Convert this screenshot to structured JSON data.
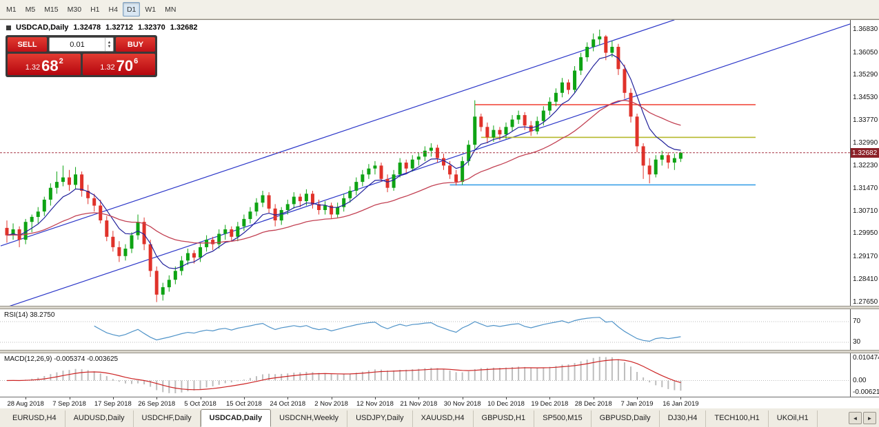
{
  "toolbar": {
    "timeframes": [
      "M1",
      "M5",
      "M15",
      "M30",
      "H1",
      "H4",
      "D1",
      "W1",
      "MN"
    ],
    "active_timeframe": "D1"
  },
  "chart_header": {
    "symbol": "USDCAD,Daily",
    "open": "1.32478",
    "high": "1.32712",
    "low": "1.32370",
    "close": "1.32682"
  },
  "trade_panel": {
    "sell_label": "SELL",
    "buy_label": "BUY",
    "volume": "0.01",
    "sell_price": {
      "small": "1.32",
      "big": "68",
      "sup": "2"
    },
    "buy_price": {
      "small": "1.32",
      "big": "70",
      "sup": "6"
    }
  },
  "price_scale": {
    "ticks": [
      "1.36830",
      "1.36050",
      "1.35290",
      "1.34530",
      "1.33770",
      "1.32990",
      "1.32230",
      "1.31470",
      "1.30710",
      "1.29950",
      "1.29170",
      "1.28410",
      "1.27650"
    ],
    "current_price": "1.32682"
  },
  "rsi_panel": {
    "label": "RSI(14) 38.2750",
    "levels": [
      "70",
      "30"
    ]
  },
  "macd_panel": {
    "label": "MACD(12,26,9) -0.005374 -0.003625",
    "scale": [
      "0.010474",
      "0.00",
      "-0.006218"
    ]
  },
  "date_axis": {
    "labels": [
      "28 Aug 2018",
      "7 Sep 2018",
      "17 Sep 2018",
      "26 Sep 2018",
      "5 Oct 2018",
      "15 Oct 2018",
      "24 Oct 2018",
      "2 Nov 2018",
      "12 Nov 2018",
      "21 Nov 2018",
      "30 Nov 2018",
      "10 Dec 2018",
      "19 Dec 2018",
      "28 Dec 2018",
      "7 Jan 2019",
      "16 Jan 2019"
    ],
    "indices": [
      3,
      10,
      17,
      24,
      31,
      38,
      45,
      52,
      59,
      66,
      73,
      80,
      87,
      94,
      101,
      108
    ]
  },
  "tabs": {
    "items": [
      "EURUSD,H4",
      "AUDUSD,Daily",
      "USDCHF,Daily",
      "USDCAD,Daily",
      "USDCNH,Weekly",
      "USDJPY,Daily",
      "XAUUSD,H4",
      "GBPUSD,H1",
      "SP500,M15",
      "GBPUSD,Daily",
      "DJ30,H4",
      "TECH100,H1",
      "UKOil,H1"
    ],
    "active_index": 3
  },
  "chart_data": {
    "type": "candlestick",
    "symbol": "USDCAD",
    "timeframe": "Daily",
    "y_axis": {
      "top": 1.3683,
      "step": 0.0076,
      "bottom": 1.2765
    },
    "colors": {
      "up": "#0ea313",
      "down": "#e0322a",
      "ma_fast": "#20209a",
      "ma_slow": "#c24052",
      "bid_line": "#a63342",
      "rsi": "#4f93c8",
      "macd_hist": "#bdbdbd",
      "macd_signal": "#cc2222",
      "trend": "#2a35c8"
    },
    "overlays": {
      "ma_fast_period": 7,
      "ma_slow_period": 30,
      "trendlines": [
        {
          "i1": -1,
          "p1": 1.2741,
          "i2": 137,
          "p2": 1.3715
        },
        {
          "i1": -1,
          "p1": 1.2954,
          "i2": 107,
          "p2": 1.3716
        }
      ],
      "hlines": [
        {
          "price": 1.343,
          "i1": 75,
          "i2": 120,
          "color": "#f03b2e"
        },
        {
          "price": 1.332,
          "i1": 76,
          "i2": 120,
          "color": "#b4b82a"
        },
        {
          "price": 1.316,
          "i1": 71,
          "i2": 120,
          "color": "#3aa0e8"
        }
      ]
    },
    "indicators": {
      "rsi": {
        "period": 14,
        "value": 38.275
      },
      "macd": {
        "fast": 12,
        "slow": 26,
        "signal": 9,
        "value": -0.005374,
        "signal_value": -0.003625
      }
    },
    "last": {
      "open": 1.32478,
      "high": 1.32712,
      "low": 1.3237,
      "close": 1.32682
    },
    "ohlc": [
      [
        1.3015,
        1.304,
        1.2965,
        1.299
      ],
      [
        1.299,
        1.303,
        1.2975,
        1.301
      ],
      [
        1.301,
        1.302,
        1.295,
        1.2975
      ],
      [
        1.2975,
        1.3045,
        1.296,
        1.3035
      ],
      [
        1.3035,
        1.306,
        1.3,
        1.3052
      ],
      [
        1.3052,
        1.3085,
        1.303,
        1.307
      ],
      [
        1.307,
        1.312,
        1.3055,
        1.311
      ],
      [
        1.311,
        1.3165,
        1.309,
        1.315
      ],
      [
        1.315,
        1.3205,
        1.313,
        1.317
      ],
      [
        1.317,
        1.3225,
        1.3155,
        1.3185
      ],
      [
        1.3185,
        1.321,
        1.314,
        1.316
      ],
      [
        1.316,
        1.322,
        1.3145,
        1.3195
      ],
      [
        1.3195,
        1.3205,
        1.312,
        1.314
      ],
      [
        1.314,
        1.316,
        1.3095,
        1.3115
      ],
      [
        1.3115,
        1.313,
        1.307,
        1.309
      ],
      [
        1.309,
        1.311,
        1.303,
        1.304
      ],
      [
        1.304,
        1.3055,
        1.297,
        1.2985
      ],
      [
        1.2985,
        1.3005,
        1.2935,
        1.295
      ],
      [
        1.295,
        1.297,
        1.29,
        1.292
      ],
      [
        1.292,
        1.296,
        1.2905,
        1.2945
      ],
      [
        1.2945,
        1.3,
        1.293,
        1.299
      ],
      [
        1.299,
        1.306,
        1.2975,
        1.3035
      ],
      [
        1.3035,
        1.305,
        1.294,
        1.296
      ],
      [
        1.296,
        1.2975,
        1.285,
        1.287
      ],
      [
        1.287,
        1.2885,
        1.2765,
        1.279
      ],
      [
        1.279,
        1.283,
        1.277,
        1.2815
      ],
      [
        1.2815,
        1.2855,
        1.28,
        1.284
      ],
      [
        1.284,
        1.2885,
        1.2825,
        1.287
      ],
      [
        1.287,
        1.292,
        1.2855,
        1.2905
      ],
      [
        1.2905,
        1.2945,
        1.289,
        1.293
      ],
      [
        1.293,
        1.294,
        1.2895,
        1.2915
      ],
      [
        1.2915,
        1.2965,
        1.29,
        1.295
      ],
      [
        1.295,
        1.299,
        1.2935,
        1.2975
      ],
      [
        1.2975,
        1.2985,
        1.294,
        1.296
      ],
      [
        1.296,
        1.301,
        1.2945,
        1.2995
      ],
      [
        1.2995,
        1.3025,
        1.2975,
        1.301
      ],
      [
        1.301,
        1.302,
        1.297,
        1.2985
      ],
      [
        1.2985,
        1.3035,
        1.297,
        1.302
      ],
      [
        1.302,
        1.306,
        1.3005,
        1.3045
      ],
      [
        1.3045,
        1.3085,
        1.303,
        1.307
      ],
      [
        1.307,
        1.3115,
        1.3055,
        1.31
      ],
      [
        1.31,
        1.314,
        1.3085,
        1.3125
      ],
      [
        1.3125,
        1.3135,
        1.3065,
        1.308
      ],
      [
        1.308,
        1.3095,
        1.302,
        1.304
      ],
      [
        1.304,
        1.3085,
        1.3025,
        1.3075
      ],
      [
        1.3075,
        1.311,
        1.306,
        1.3095
      ],
      [
        1.3095,
        1.3135,
        1.308,
        1.312
      ],
      [
        1.312,
        1.313,
        1.3085,
        1.3105
      ],
      [
        1.3105,
        1.3145,
        1.309,
        1.313
      ],
      [
        1.313,
        1.314,
        1.308,
        1.3095
      ],
      [
        1.3095,
        1.311,
        1.306,
        1.3075
      ],
      [
        1.3075,
        1.3105,
        1.306,
        1.309
      ],
      [
        1.309,
        1.31,
        1.3045,
        1.306
      ],
      [
        1.306,
        1.31,
        1.305,
        1.3085
      ],
      [
        1.3085,
        1.313,
        1.307,
        1.3115
      ],
      [
        1.3115,
        1.3155,
        1.31,
        1.314
      ],
      [
        1.314,
        1.3185,
        1.3125,
        1.317
      ],
      [
        1.317,
        1.321,
        1.3155,
        1.3195
      ],
      [
        1.3195,
        1.323,
        1.318,
        1.3215
      ],
      [
        1.3215,
        1.324,
        1.3195,
        1.3225
      ],
      [
        1.3225,
        1.3235,
        1.317,
        1.318
      ],
      [
        1.318,
        1.3195,
        1.3135,
        1.315
      ],
      [
        1.315,
        1.321,
        1.314,
        1.3195
      ],
      [
        1.3195,
        1.325,
        1.3185,
        1.3235
      ],
      [
        1.3235,
        1.3245,
        1.32,
        1.3215
      ],
      [
        1.3215,
        1.326,
        1.3205,
        1.3245
      ],
      [
        1.3245,
        1.327,
        1.3225,
        1.3255
      ],
      [
        1.3255,
        1.329,
        1.324,
        1.3275
      ],
      [
        1.3275,
        1.33,
        1.3255,
        1.3285
      ],
      [
        1.3285,
        1.3295,
        1.3235,
        1.325
      ],
      [
        1.325,
        1.3265,
        1.321,
        1.3225
      ],
      [
        1.3225,
        1.324,
        1.318,
        1.3195
      ],
      [
        1.3195,
        1.321,
        1.3158,
        1.317
      ],
      [
        1.317,
        1.3255,
        1.316,
        1.324
      ],
      [
        1.324,
        1.331,
        1.3225,
        1.3295
      ],
      [
        1.3295,
        1.3445,
        1.328,
        1.339
      ],
      [
        1.339,
        1.34,
        1.334,
        1.3355
      ],
      [
        1.3355,
        1.337,
        1.33,
        1.332
      ],
      [
        1.332,
        1.336,
        1.3305,
        1.3345
      ],
      [
        1.3345,
        1.3355,
        1.331,
        1.333
      ],
      [
        1.333,
        1.337,
        1.3315,
        1.3355
      ],
      [
        1.3355,
        1.3395,
        1.334,
        1.338
      ],
      [
        1.338,
        1.341,
        1.3365,
        1.3395
      ],
      [
        1.3395,
        1.3405,
        1.3345,
        1.336
      ],
      [
        1.336,
        1.3375,
        1.3325,
        1.334
      ],
      [
        1.334,
        1.339,
        1.333,
        1.3375
      ],
      [
        1.3375,
        1.3425,
        1.336,
        1.341
      ],
      [
        1.341,
        1.3455,
        1.3395,
        1.344
      ],
      [
        1.344,
        1.3485,
        1.3425,
        1.347
      ],
      [
        1.347,
        1.352,
        1.3455,
        1.3505
      ],
      [
        1.3505,
        1.3515,
        1.3465,
        1.348
      ],
      [
        1.348,
        1.356,
        1.347,
        1.3545
      ],
      [
        1.3545,
        1.3605,
        1.353,
        1.359
      ],
      [
        1.359,
        1.364,
        1.3575,
        1.3625
      ],
      [
        1.3625,
        1.367,
        1.361,
        1.365
      ],
      [
        1.365,
        1.3683,
        1.363,
        1.366
      ],
      [
        1.366,
        1.3665,
        1.358,
        1.3605
      ],
      [
        1.3605,
        1.3645,
        1.359,
        1.3625
      ],
      [
        1.3625,
        1.3635,
        1.353,
        1.355
      ],
      [
        1.355,
        1.3565,
        1.345,
        1.347
      ],
      [
        1.347,
        1.3485,
        1.337,
        1.339
      ],
      [
        1.339,
        1.34,
        1.327,
        1.329
      ],
      [
        1.329,
        1.33,
        1.318,
        1.3225
      ],
      [
        1.3225,
        1.325,
        1.3165,
        1.3195
      ],
      [
        1.3195,
        1.326,
        1.3185,
        1.3245
      ],
      [
        1.3245,
        1.3275,
        1.3225,
        1.326
      ],
      [
        1.326,
        1.327,
        1.3215,
        1.3235
      ],
      [
        1.3235,
        1.3265,
        1.321,
        1.325
      ],
      [
        1.32478,
        1.32712,
        1.3237,
        1.32682
      ]
    ]
  }
}
